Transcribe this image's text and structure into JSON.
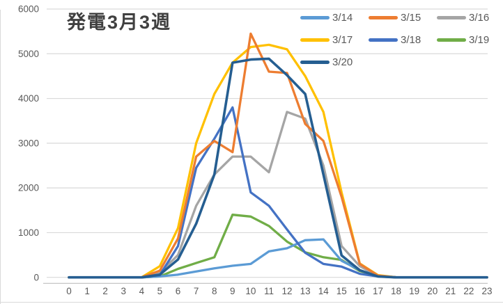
{
  "chart_data": {
    "type": "line",
    "title": "発電3月3週",
    "xlabel": "",
    "ylabel": "",
    "x": [
      0,
      1,
      2,
      3,
      4,
      5,
      6,
      7,
      8,
      9,
      10,
      11,
      12,
      13,
      14,
      15,
      16,
      17,
      18,
      19,
      20,
      21,
      22,
      23
    ],
    "x_tick_labels": [
      "0",
      "1",
      "2",
      "3",
      "4",
      "5",
      "6",
      "7",
      "8",
      "9",
      "10",
      "11",
      "12",
      "13",
      "14",
      "15",
      "16",
      "17",
      "18",
      "19",
      "20",
      "21",
      "22",
      "23"
    ],
    "ylim": [
      0,
      6000
    ],
    "y_ticks": [
      0,
      1000,
      2000,
      3000,
      4000,
      5000,
      6000
    ],
    "y_tick_labels": [
      "0",
      "1000",
      "2000",
      "3000",
      "4000",
      "5000",
      "6000"
    ],
    "grid": true,
    "legend_position": "top-right",
    "series": [
      {
        "name": "3/14",
        "color": "#5B9BD5",
        "values": [
          0,
          0,
          0,
          0,
          0,
          20,
          60,
          130,
          200,
          260,
          300,
          580,
          650,
          830,
          850,
          370,
          160,
          30,
          0,
          0,
          0,
          0,
          0,
          0
        ]
      },
      {
        "name": "3/15",
        "color": "#ED7D31",
        "values": [
          0,
          0,
          0,
          0,
          0,
          150,
          870,
          2700,
          3050,
          2800,
          5450,
          4600,
          4570,
          3430,
          3050,
          1800,
          300,
          40,
          0,
          0,
          0,
          0,
          0,
          0
        ]
      },
      {
        "name": "3/16",
        "color": "#A5A5A5",
        "values": [
          0,
          0,
          0,
          0,
          0,
          100,
          500,
          1600,
          2300,
          2700,
          2700,
          2350,
          3700,
          3550,
          2500,
          700,
          250,
          30,
          0,
          0,
          0,
          0,
          0,
          0
        ]
      },
      {
        "name": "3/17",
        "color": "#FFC000",
        "values": [
          0,
          0,
          0,
          0,
          0,
          250,
          1100,
          3000,
          4100,
          4800,
          5150,
          5200,
          5100,
          4500,
          3700,
          1900,
          310,
          50,
          0,
          0,
          0,
          0,
          0,
          0
        ]
      },
      {
        "name": "3/18",
        "color": "#4472C4",
        "values": [
          0,
          0,
          0,
          0,
          0,
          50,
          700,
          2450,
          3100,
          3800,
          1900,
          1600,
          1070,
          550,
          300,
          240,
          80,
          20,
          0,
          0,
          0,
          0,
          0,
          0
        ]
      },
      {
        "name": "3/19",
        "color": "#70AD47",
        "values": [
          0,
          0,
          0,
          0,
          0,
          20,
          190,
          320,
          450,
          1400,
          1360,
          1150,
          800,
          560,
          450,
          390,
          140,
          40,
          0,
          0,
          0,
          0,
          0,
          0
        ]
      },
      {
        "name": "3/20",
        "color": "#255E91",
        "values": [
          0,
          0,
          0,
          0,
          0,
          60,
          400,
          1200,
          2300,
          4800,
          4870,
          4890,
          4520,
          4100,
          2300,
          490,
          160,
          20,
          0,
          0,
          0,
          0,
          0,
          0
        ]
      }
    ],
    "draw_order": [
      "3/16",
      "3/19",
      "3/14",
      "3/18",
      "3/17",
      "3/15",
      "3/20"
    ],
    "colors": {
      "gridline": "#D9D9D9",
      "axis_line": "#BFBFBF",
      "tick_text": "#595959",
      "title_text": "#404040",
      "background": "#FFFFFF"
    }
  }
}
